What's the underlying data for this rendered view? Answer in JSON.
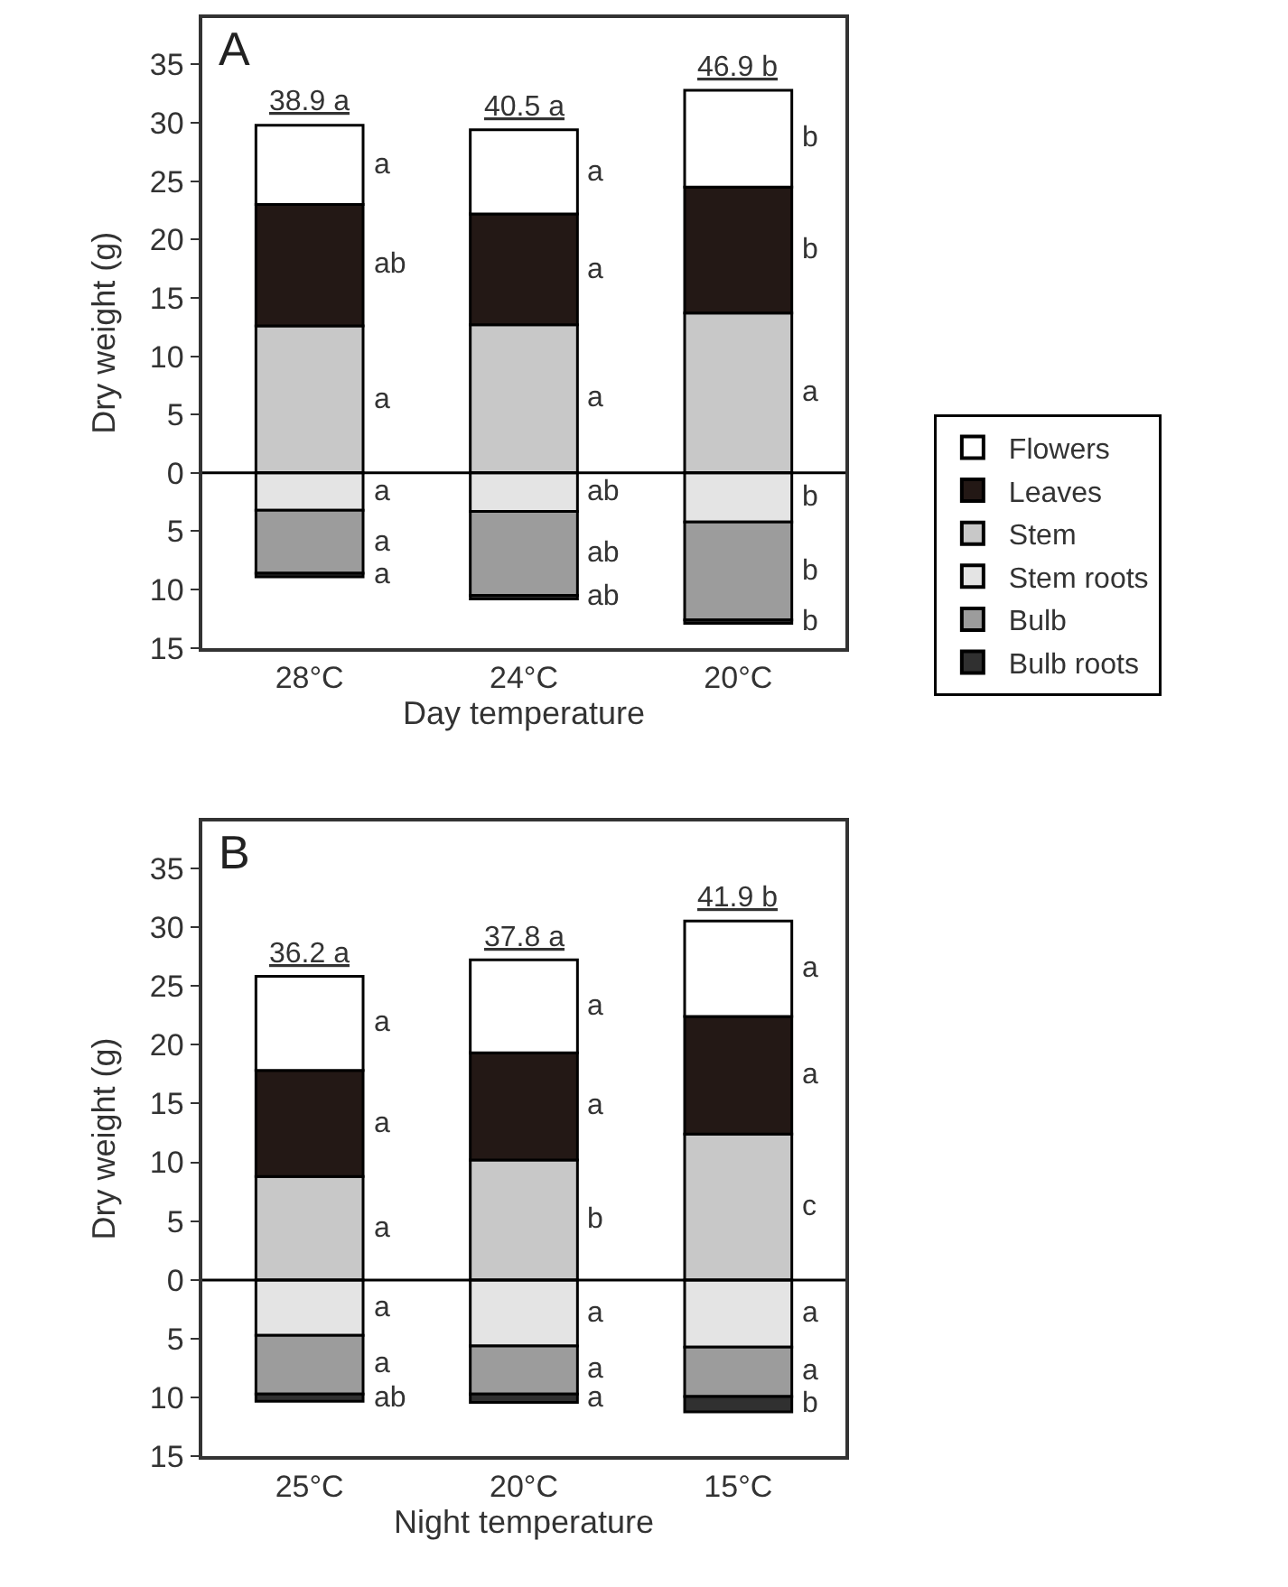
{
  "chart_data": [
    {
      "type": "bar",
      "stacked": true,
      "categories": [
        "28°C",
        "24°C",
        "20°C"
      ],
      "xlabel": "Day temperature",
      "ylabel": "Dry weight (g)",
      "ylim": [
        -15,
        39
      ],
      "yticks": [
        35,
        30,
        25,
        20,
        15,
        10,
        5,
        0,
        {
          "value": -5,
          "label": "5"
        },
        {
          "value": -10,
          "label": "10"
        },
        {
          "value": -15,
          "label": "15"
        }
      ],
      "legend": "right",
      "ref_lines": [
        {
          "axis": "y",
          "value": 0,
          "color": "#000000"
        }
      ],
      "series": [
        {
          "name": "Stem",
          "color": "#c8c8c8",
          "values": [
            12.6,
            12.7,
            13.7
          ]
        },
        {
          "name": "Leaves",
          "color": "#231815",
          "values": [
            10.4,
            9.5,
            10.8
          ]
        },
        {
          "name": "Flowers",
          "color": "#ffffff",
          "values": [
            6.8,
            7.2,
            8.3
          ]
        },
        {
          "name": "Stem roots",
          "color": "#e4e4e4",
          "values": [
            -3.2,
            -3.3,
            -4.2
          ]
        },
        {
          "name": "Bulb",
          "color": "#9c9c9c",
          "values": [
            -5.4,
            -7.2,
            -8.4
          ]
        },
        {
          "name": "Bulb roots",
          "color": "#303030",
          "values": [
            -0.3,
            -0.3,
            -0.3
          ]
        }
      ],
      "annotations": [
        "A",
        {
          "text": "38.9 a",
          "x": "28°C",
          "y": 29.8
        },
        {
          "text": "40.5 a",
          "x": "24°C",
          "y": 29.4
        },
        {
          "text": "46.9 b",
          "x": "20°C",
          "y": 32.8
        },
        "a",
        "ab",
        "a",
        "a",
        "a",
        "a",
        "a",
        "a",
        "a",
        "ab",
        "ab",
        "ab",
        "b",
        "b",
        "a",
        "b",
        "b",
        "b"
      ]
    },
    {
      "type": "bar",
      "stacked": true,
      "categories": [
        "25°C",
        "20°C",
        "15°C"
      ],
      "xlabel": "Night temperature",
      "ylabel": "Dry weight (g)",
      "ylim": [
        -15,
        39
      ],
      "yticks": [
        35,
        30,
        25,
        20,
        15,
        10,
        5,
        0,
        {
          "value": -5,
          "label": "5"
        },
        {
          "value": -10,
          "label": "10"
        },
        {
          "value": -15,
          "label": "15"
        }
      ],
      "ref_lines": [
        {
          "axis": "y",
          "value": 0,
          "color": "#000000"
        }
      ],
      "series": [
        {
          "color": "#c8c8c8",
          "values": [
            8.8,
            10.2,
            12.4
          ]
        },
        {
          "color": "#231815",
          "values": [
            9.0,
            9.1,
            10.0
          ]
        },
        {
          "color": "#ffffff",
          "values": [
            8.0,
            7.9,
            8.1
          ]
        },
        {
          "color": "#e4e4e4",
          "values": [
            -4.7,
            -5.6,
            -5.7
          ]
        },
        {
          "color": "#9c9c9c",
          "values": [
            -5.0,
            -4.1,
            -4.2
          ]
        },
        {
          "color": "#303030",
          "values": [
            -0.6,
            -0.7,
            -1.3
          ]
        }
      ],
      "annotations": [
        "B",
        {
          "text": "36.2 a",
          "x": "25°C",
          "y": 25.8
        },
        {
          "text": "37.8 a",
          "x": "20°C",
          "y": 27.2
        },
        {
          "text": "41.9 b",
          "x": "15°C",
          "y": 30.5
        },
        "a",
        "a",
        "a",
        "a",
        "a",
        "ab",
        "a",
        "a",
        "b",
        "a",
        "a",
        "a",
        "a",
        "a",
        "c",
        "a",
        "a",
        "b"
      ]
    }
  ]
}
